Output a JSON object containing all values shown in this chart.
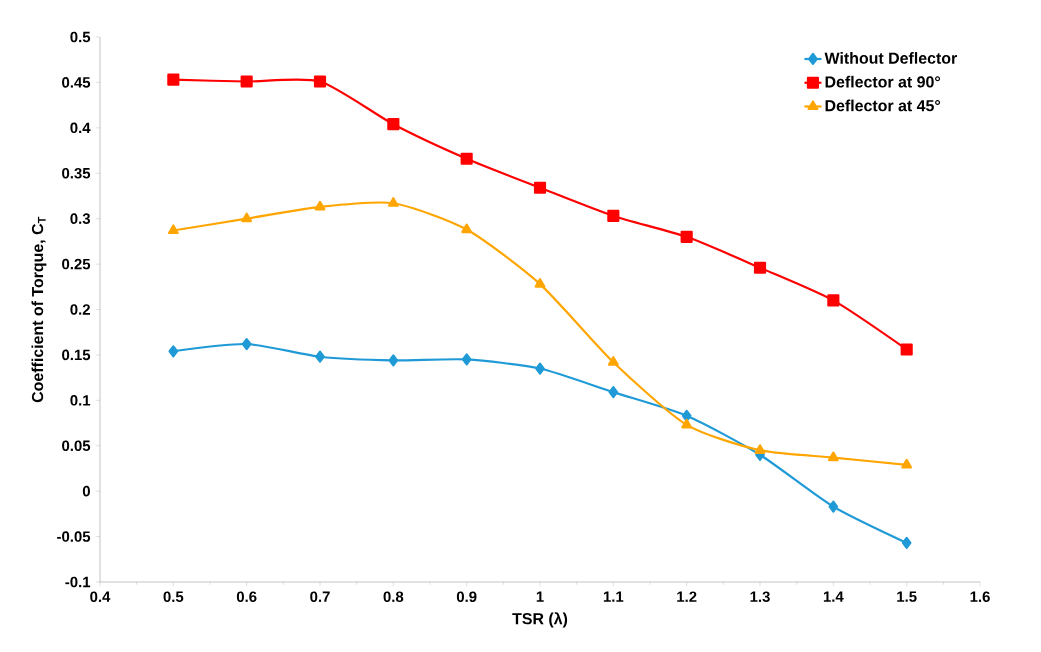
{
  "chart_data": {
    "type": "line",
    "xlabel": "TSR (λ)",
    "ylabel": "Coefficient of Torque, C$_{T}$",
    "x": [
      0.5,
      0.6,
      0.7,
      0.8,
      0.9,
      1.0,
      1.1,
      1.2,
      1.3,
      1.4,
      1.5
    ],
    "series": [
      {
        "name": "Without Deflector",
        "color": "#1f9ad6",
        "marker": "diamond",
        "values": [
          0.154,
          0.162,
          0.148,
          0.144,
          0.145,
          0.135,
          0.109,
          0.083,
          0.04,
          -0.017,
          -0.057
        ]
      },
      {
        "name": "Deflector at 90°",
        "color": "#ff0000",
        "marker": "square",
        "values": [
          0.453,
          0.451,
          0.451,
          0.404,
          0.366,
          0.334,
          0.303,
          0.28,
          0.246,
          0.21,
          0.156
        ]
      },
      {
        "name": "Deflector at 45°",
        "color": "#ffa500",
        "marker": "triangle",
        "values": [
          0.287,
          0.3,
          0.313,
          0.317,
          0.288,
          0.228,
          0.142,
          0.073,
          0.045,
          0.037,
          0.029
        ]
      }
    ],
    "xlim": [
      0.4,
      1.6
    ],
    "ylim": [
      -0.1,
      0.5
    ],
    "xticks": [
      0.4,
      0.5,
      0.6,
      0.7,
      0.8,
      0.9,
      1,
      1.1,
      1.2,
      1.3,
      1.4,
      1.5,
      1.6
    ],
    "yticks": [
      -0.1,
      -0.05,
      0,
      0.05,
      0.1,
      0.15,
      0.2,
      0.25,
      0.3,
      0.35,
      0.4,
      0.45,
      0.5
    ],
    "grid": false,
    "legend": "top right",
    "line_style": "solid"
  }
}
